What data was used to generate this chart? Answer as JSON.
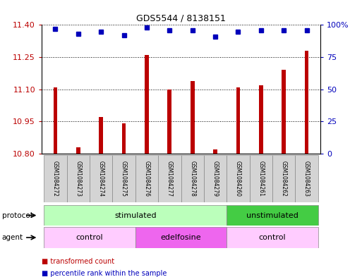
{
  "title": "GDS5544 / 8138151",
  "samples": [
    "GSM1084272",
    "GSM1084273",
    "GSM1084274",
    "GSM1084275",
    "GSM1084276",
    "GSM1084277",
    "GSM1084278",
    "GSM1084279",
    "GSM1084260",
    "GSM1084261",
    "GSM1084262",
    "GSM1084263"
  ],
  "bar_values": [
    11.11,
    10.83,
    10.97,
    10.94,
    11.26,
    11.1,
    11.14,
    10.82,
    11.11,
    11.12,
    11.19,
    11.28
  ],
  "dot_values_pct": [
    97,
    93,
    95,
    92,
    98,
    96,
    96,
    91,
    95,
    96,
    96,
    96
  ],
  "ylim_left": [
    10.8,
    11.4
  ],
  "ylim_right": [
    0,
    100
  ],
  "yticks_left": [
    10.8,
    10.95,
    11.1,
    11.25,
    11.4
  ],
  "yticks_right": [
    0,
    25,
    50,
    75,
    100
  ],
  "bar_color": "#bb0000",
  "dot_color": "#0000bb",
  "bar_width": 0.18,
  "protocol_labels": [
    {
      "label": "stimulated",
      "start": 0,
      "end": 8,
      "color": "#bbffbb"
    },
    {
      "label": "unstimulated",
      "start": 8,
      "end": 12,
      "color": "#44cc44"
    }
  ],
  "agent_labels": [
    {
      "label": "control",
      "start": 0,
      "end": 4,
      "color": "#ffccff"
    },
    {
      "label": "edelfosine",
      "start": 4,
      "end": 8,
      "color": "#ee66ee"
    },
    {
      "label": "control",
      "start": 8,
      "end": 12,
      "color": "#ffccff"
    }
  ],
  "legend_items": [
    {
      "label": "transformed count",
      "color": "#bb0000"
    },
    {
      "label": "percentile rank within the sample",
      "color": "#0000bb"
    }
  ],
  "bg_color": "#ffffff",
  "sample_box_color": "#d4d4d4"
}
